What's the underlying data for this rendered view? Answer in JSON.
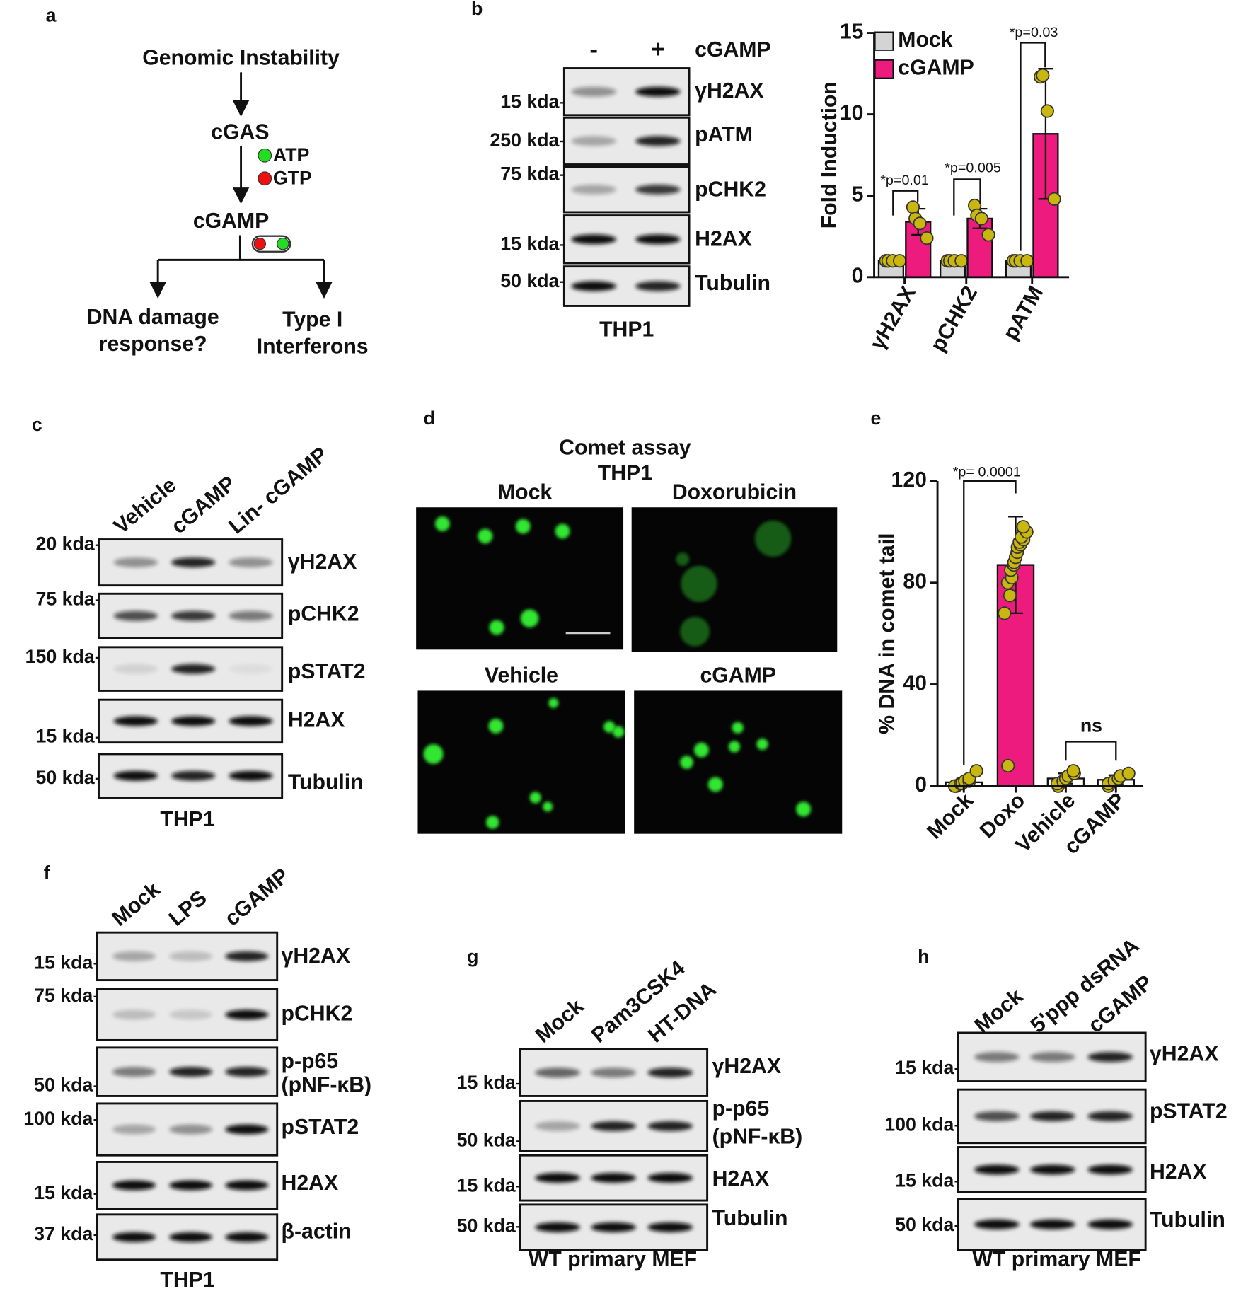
{
  "panel_labels": [
    "a",
    "b",
    "c",
    "d",
    "e",
    "f",
    "g",
    "h"
  ],
  "diagram": {
    "top": "Genomic Instability",
    "enzyme": "cGAS",
    "substrates": [
      "ATP",
      "GTP"
    ],
    "product": "cGAMP",
    "outcomes": [
      [
        "DNA damage",
        "response?"
      ],
      [
        "Type I",
        "Interferons"
      ]
    ]
  },
  "blots": {
    "b": {
      "treatment": "cGAMP",
      "lanes": [
        "-",
        "+"
      ],
      "rows": [
        {
          "marker": "15 kda",
          "protein": "γH2AX"
        },
        {
          "marker": "250 kda",
          "protein": "pATM"
        },
        {
          "marker": "75 kda",
          "protein": "pCHK2"
        },
        {
          "marker": "15 kda",
          "protein": "H2AX"
        },
        {
          "marker": "50 kda",
          "protein": "Tubulin"
        }
      ],
      "footer": "THP1"
    },
    "c": {
      "lanes": [
        "Vehicle",
        "cGAMP",
        "Lin- cGAMP"
      ],
      "rows": [
        {
          "marker": "20 kda",
          "protein": "γH2AX"
        },
        {
          "marker": "75 kda",
          "protein": "pCHK2"
        },
        {
          "marker": "150 kda",
          "protein": "pSTAT2"
        },
        {
          "marker": "15 kda",
          "protein": "H2AX"
        },
        {
          "marker": "50 kda",
          "protein": "Tubulin"
        }
      ],
      "footer": "THP1"
    },
    "f": {
      "lanes": [
        "Mock",
        "LPS",
        "cGAMP"
      ],
      "rows": [
        {
          "marker": "15 kda",
          "protein": "γH2AX"
        },
        {
          "marker": "75 kda",
          "protein": "pCHK2"
        },
        {
          "marker": "50 kda",
          "protein": [
            "p-p65",
            "(pNF-κB)"
          ]
        },
        {
          "marker": "100 kda",
          "protein": "pSTAT2"
        },
        {
          "marker": "15 kda",
          "protein": "H2AX"
        },
        {
          "marker": "37 kda",
          "protein": "β-actin"
        }
      ],
      "footer": "THP1"
    },
    "g": {
      "lanes": [
        "Mock",
        "Pam3CSK4",
        "HT-DNA"
      ],
      "rows": [
        {
          "marker": "15 kda",
          "protein": "γH2AX"
        },
        {
          "marker": "50 kda",
          "protein": [
            "p-p65",
            "(pNF-κB)"
          ]
        },
        {
          "marker": "15 kda",
          "protein": "H2AX"
        },
        {
          "marker": "50 kda",
          "protein": "Tubulin"
        }
      ],
      "footer": "WT primary MEF"
    },
    "h": {
      "lanes": [
        "Mock",
        "5'ppp dsRNA",
        "cGAMP"
      ],
      "rows": [
        {
          "marker": "15 kda",
          "protein": "γH2AX"
        },
        {
          "marker": "100 kda",
          "protein": "pSTAT2"
        },
        {
          "marker": "15 kda",
          "protein": "H2AX"
        },
        {
          "marker": "50 kda",
          "protein": "Tubulin"
        }
      ],
      "footer": "WT primary MEF"
    }
  },
  "comet": {
    "title": [
      "Comet assay",
      "THP1"
    ],
    "images": [
      "Mock",
      "Doxorubicin",
      "Vehicle",
      "cGAMP"
    ]
  },
  "chart_data": [
    {
      "type": "bar",
      "y_label": "Fold Induction",
      "categories": [
        "γH2AX",
        "pCHK2",
        "pATM"
      ],
      "series": [
        {
          "name": "Mock",
          "color": "#d4d4d4",
          "values": [
            1,
            1,
            1
          ],
          "points": [
            [
              1,
              1,
              1,
              1
            ],
            [
              1,
              1,
              1,
              1
            ],
            [
              1,
              1,
              1,
              1
            ]
          ]
        },
        {
          "name": "cGAMP",
          "color": "#ee1b7e",
          "values": [
            3.4,
            3.6,
            8.8
          ],
          "errors": [
            0.8,
            0.6,
            4.0
          ],
          "points": [
            [
              4.3,
              3.6,
              3.3,
              2.4
            ],
            [
              4.4,
              3.8,
              3.6,
              2.6
            ],
            [
              12.3,
              12.4,
              10.2,
              4.8
            ]
          ]
        }
      ],
      "point_color": "#c9b60e",
      "ylim": [
        0,
        15
      ],
      "yticks": [
        0,
        5,
        10,
        15
      ],
      "legend": "top-left",
      "annotations": [
        "*p=0.01",
        "*p=0.005",
        "*p=0.03"
      ]
    },
    {
      "type": "bar",
      "y_label": "% DNA in comet tail",
      "categories": [
        "Mock",
        "Doxo",
        "Vehicle",
        "cGAMP"
      ],
      "values": [
        1.5,
        87,
        3,
        2.5
      ],
      "errors": [
        1.5,
        19,
        2,
        1.8
      ],
      "points": [
        [
          0,
          0,
          1,
          1,
          2,
          2,
          3,
          6
        ],
        [
          8,
          68,
          75,
          80,
          82,
          85,
          87,
          88,
          90,
          92,
          94,
          95,
          96,
          97,
          98,
          100,
          102
        ],
        [
          0,
          1,
          2,
          3,
          4,
          5,
          6
        ],
        [
          0,
          1,
          2,
          3,
          4,
          5
        ]
      ],
      "colors": [
        "#ffffff",
        "#ee1b7e",
        "#ffffff",
        "#ffffff"
      ],
      "point_color": "#c9b60e",
      "ylim": [
        0,
        120
      ],
      "yticks": [
        0,
        40,
        80,
        120
      ],
      "annotations": [
        "*p= 0.0001",
        "ns"
      ]
    }
  ]
}
